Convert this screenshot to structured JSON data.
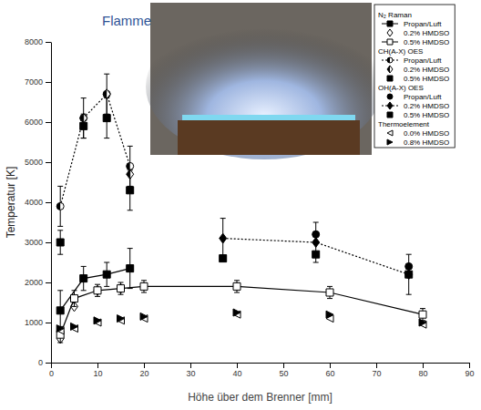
{
  "chart_data": {
    "type": "scatter",
    "title": "Flamme",
    "x_label": "Höhe über dem Brenner [mm]",
    "y_label": "Temperatur [K]",
    "xlim": [
      0,
      90
    ],
    "xticks": [
      0,
      10,
      20,
      30,
      40,
      50,
      60,
      70,
      80,
      90
    ],
    "ylim": [
      0,
      8000
    ],
    "yticks": [
      0,
      1000,
      2000,
      3000,
      4000,
      5000,
      6000,
      7000,
      8000
    ],
    "grid": false,
    "legend": "top-right",
    "series": [
      {
        "name": "Propan/Luft",
        "group": "N₂ Raman",
        "marker": "square",
        "line_style": "solid",
        "color": "#000000",
        "x": [
          2,
          7,
          12,
          17
        ],
        "values": [
          1300,
          2100,
          2200,
          2350
        ],
        "errors": [
          500,
          300,
          300,
          500
        ]
      },
      {
        "name": "0.2% HMDSO",
        "group": "N₂ Raman",
        "marker": "diamond-open",
        "color": "#000000",
        "x": [
          2,
          5,
          10,
          15
        ],
        "values": [
          600,
          1400,
          1800,
          1850
        ]
      },
      {
        "name": "0.5% HMDSO",
        "group": "N₂ Raman",
        "marker": "square-open",
        "line_style": "solid",
        "color": "#000000",
        "x": [
          2,
          5,
          10,
          15,
          20,
          40,
          60,
          80
        ],
        "values": [
          700,
          1600,
          1800,
          1850,
          1900,
          1900,
          1750,
          1200
        ],
        "errors": [
          200,
          200,
          150,
          150,
          150,
          150,
          150,
          150
        ]
      },
      {
        "name": "Propan/Luft",
        "group": "CH(A-X) OES",
        "marker": "circle-half",
        "line_style": "dotted",
        "color": "#000000",
        "x": [
          2,
          7,
          12,
          17
        ],
        "values": [
          3900,
          6100,
          6700,
          4900
        ],
        "errors": [
          500,
          500,
          500,
          500
        ]
      },
      {
        "name": "0.2% HMDSO",
        "group": "CH(A-X) OES",
        "marker": "diamond-half",
        "color": "#000000",
        "x": [
          7,
          12,
          17
        ],
        "values": [
          6100,
          6700,
          4700
        ]
      },
      {
        "name": "0.5% HMDSO",
        "group": "CH(A-X) OES",
        "marker": "square",
        "color": "#000000",
        "x": [
          2,
          7,
          12,
          17
        ],
        "values": [
          3000,
          5900,
          6100,
          4300
        ],
        "errors": [
          300,
          300,
          500,
          500
        ]
      },
      {
        "name": "Propan/Luft",
        "group": "OH(A-X) OES",
        "marker": "circle",
        "color": "#000000",
        "x": [
          57,
          77
        ],
        "values": [
          3200,
          2400
        ]
      },
      {
        "name": "0.2% HMDSO",
        "group": "OH(A-X) OES",
        "marker": "diamond",
        "line_style": "dotted",
        "color": "#000000",
        "x": [
          37,
          57,
          77
        ],
        "values": [
          3100,
          3000,
          2200
        ],
        "errors": [
          500,
          500,
          500
        ]
      },
      {
        "name": "0.5% HMDSO",
        "group": "OH(A-X) OES",
        "marker": "square",
        "color": "#000000",
        "x": [
          37,
          57,
          77
        ],
        "values": [
          2600,
          2700,
          2200
        ]
      },
      {
        "name": "0.0% HMDSO",
        "group": "Thermoelement",
        "marker": "triangle-left-open",
        "color": "#000000",
        "x": [
          2,
          5,
          10,
          15,
          20,
          40,
          60,
          80
        ],
        "values": [
          800,
          850,
          1000,
          1050,
          1100,
          1200,
          1100,
          950
        ]
      },
      {
        "name": "0.8% HMDSO",
        "group": "Thermoelement",
        "marker": "triangle-right",
        "color": "#000000",
        "x": [
          2,
          5,
          10,
          15,
          20,
          40,
          60,
          80
        ],
        "values": [
          850,
          900,
          1050,
          1100,
          1150,
          1250,
          1200,
          1000
        ]
      }
    ]
  }
}
